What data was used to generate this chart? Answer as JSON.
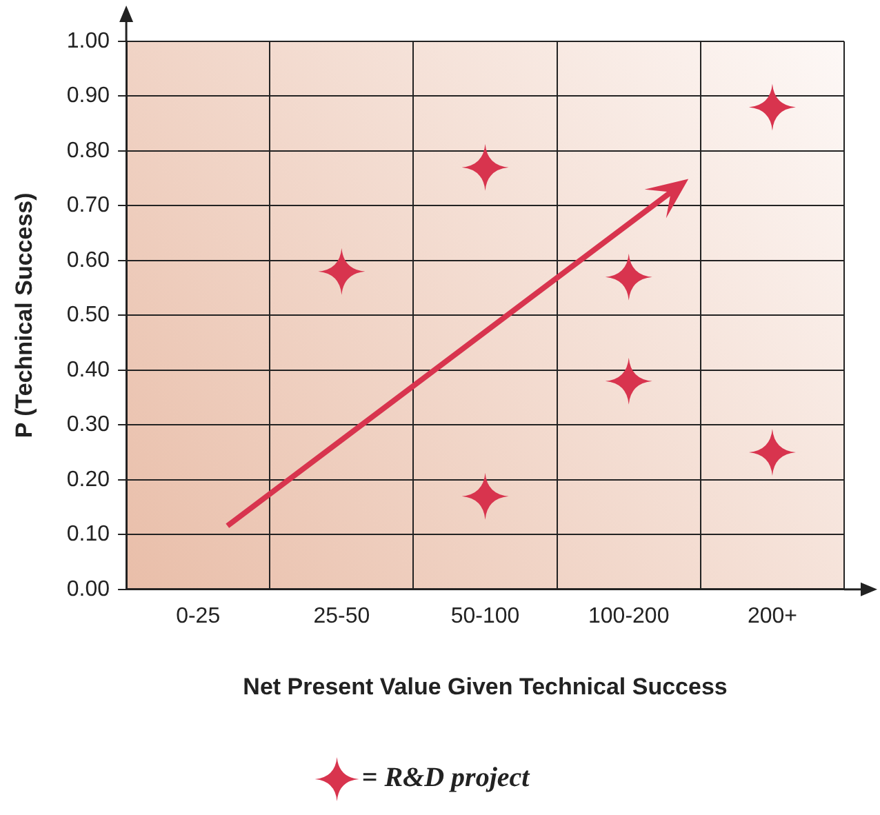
{
  "chart_data": {
    "type": "scatter",
    "xlabel": "Net Present Value Given Technical Success",
    "ylabel": "P (Technical Success)",
    "categories": [
      "0-25",
      "25-50",
      "50-100",
      "100-200",
      "200+"
    ],
    "series": [
      {
        "name": "= R&D project",
        "color": "#d8344e",
        "values": [
          null,
          0.58,
          0.77,
          0.38,
          0.88
        ]
      },
      {
        "color": "#d8344e",
        "values": [
          null,
          null,
          0.17,
          0.57,
          0.25
        ]
      }
    ],
    "ylim": [
      0,
      1
    ],
    "yticks": [
      {
        "value": 0,
        "label": "0.00"
      },
      {
        "value": 0.1,
        "label": "0.10"
      },
      {
        "value": 0.2,
        "label": "0.20"
      },
      {
        "value": 0.3,
        "label": "0.30"
      },
      {
        "value": 0.4,
        "label": "0.40"
      },
      {
        "value": 0.5,
        "label": "0.50"
      },
      {
        "value": 0.6,
        "label": "0.60"
      },
      {
        "value": 0.7,
        "label": "0.70"
      },
      {
        "value": 0.8,
        "label": "0.80"
      },
      {
        "value": 0.9,
        "label": "0.90"
      },
      {
        "value": 1,
        "label": "1.00"
      }
    ],
    "grid": true,
    "marker": "star",
    "legend": "bottom"
  }
}
